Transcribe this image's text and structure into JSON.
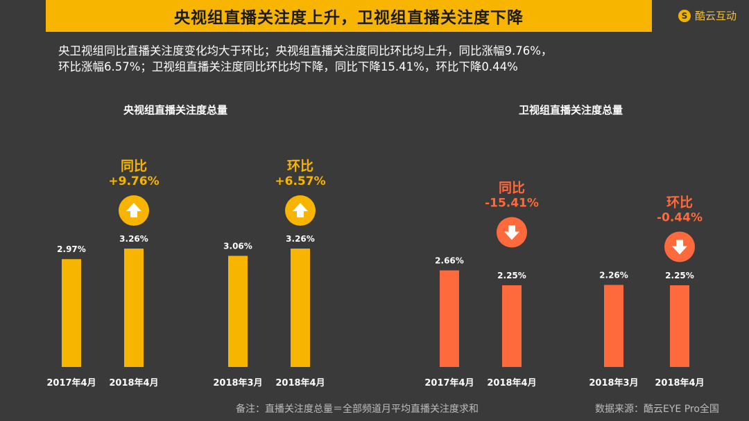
{
  "header": {
    "title": "央视组直播关注度上升，卫视组直播关注度下降",
    "brand": "酷云互动",
    "brand_mark": "S"
  },
  "summary": {
    "line1": "央卫视组同比直播关注度变化均大于环比；央视组直播关注度同比环比均上升，同比涨幅9.76%，",
    "line2": "环比涨幅6.57%；卫视组直播关注度同比环比均下降，同比下降15.41%，环比下降0.44%"
  },
  "colors": {
    "background": "#3a3a3a",
    "accent_yellow": "#f7b500",
    "accent_orange": "#ff6a3d"
  },
  "chart_data": [
    {
      "type": "bar",
      "title": "央视组直播关注度总量",
      "color": "#f7b500",
      "groups": [
        {
          "categories": [
            "2017年4月",
            "2018年4月"
          ],
          "values": [
            2.97,
            3.26
          ],
          "value_labels": [
            "2.97%",
            "3.26%"
          ],
          "change_label": "同比",
          "change_value": "+9.76%",
          "direction": "up"
        },
        {
          "categories": [
            "2018年3月",
            "2018年4月"
          ],
          "values": [
            3.06,
            3.26
          ],
          "value_labels": [
            "3.06%",
            "3.26%"
          ],
          "change_label": "环比",
          "change_value": "+6.57%",
          "direction": "up"
        }
      ]
    },
    {
      "type": "bar",
      "title": "卫视组直播关注度总量",
      "color": "#ff6a3d",
      "groups": [
        {
          "categories": [
            "2017年4月",
            "2018年4月"
          ],
          "values": [
            2.66,
            2.25
          ],
          "value_labels": [
            "2.66%",
            "2.25%"
          ],
          "change_label": "同比",
          "change_value": "-15.41%",
          "direction": "down"
        },
        {
          "categories": [
            "2018年3月",
            "2018年4月"
          ],
          "values": [
            2.26,
            2.25
          ],
          "value_labels": [
            "2.26%",
            "2.25%"
          ],
          "change_label": "环比",
          "change_value": "-0.44%",
          "direction": "down"
        }
      ]
    }
  ],
  "footer": {
    "note": "备注：直播关注度总量＝全部频道月平均直播关注度求和",
    "source": "数据来源：酷云EYE Pro全国"
  }
}
